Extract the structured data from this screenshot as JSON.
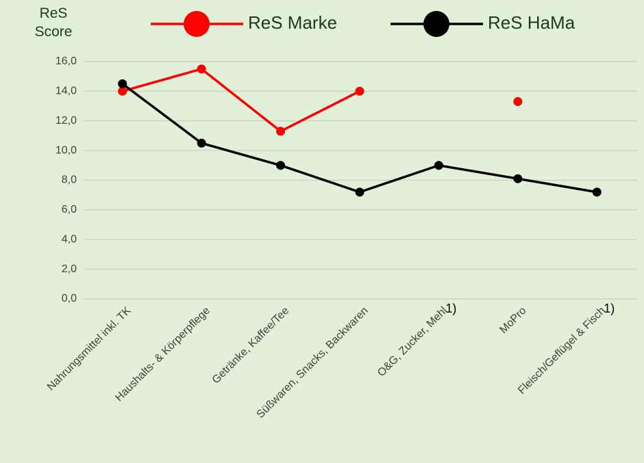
{
  "chart_data": {
    "type": "line",
    "y_label": "ReS Score",
    "categories": [
      "Nahrungsmittel inkl. TK",
      "Haushalts- & Körperpflege",
      "Getränke, Kaffee/Tee",
      "Süßwaren, Snacks, Backwaren",
      "O&G, Zucker, Mehl",
      "MoPro",
      "Fleisch/Geflügel & Fisch"
    ],
    "series": [
      {
        "name": "ReS Marke",
        "color": "#ff0000",
        "values": [
          14.0,
          15.5,
          11.3,
          14.0,
          null,
          13.3,
          null
        ]
      },
      {
        "name": "ReS HaMa",
        "color": "#000000",
        "values": [
          14.5,
          10.5,
          9.0,
          7.2,
          9.0,
          8.1,
          7.2
        ]
      }
    ],
    "ylim": [
      0,
      16
    ],
    "yticks": [
      {
        "value": 0,
        "label": "0,0"
      },
      {
        "value": 2,
        "label": "2,0"
      },
      {
        "value": 4,
        "label": "4,0"
      },
      {
        "value": 6,
        "label": "6,0"
      },
      {
        "value": 8,
        "label": "8,0"
      },
      {
        "value": 10,
        "label": "10,0"
      },
      {
        "value": 12,
        "label": "12,0"
      },
      {
        "value": 14,
        "label": "14,0"
      },
      {
        "value": 16,
        "label": "16,0"
      }
    ],
    "grid": true,
    "legend": "top",
    "annotations": [
      {
        "text": "1)",
        "category": "O&G, Zucker, Mehl"
      },
      {
        "text": "1)",
        "category": "Fleisch/Geflügel & Fisch"
      }
    ]
  }
}
